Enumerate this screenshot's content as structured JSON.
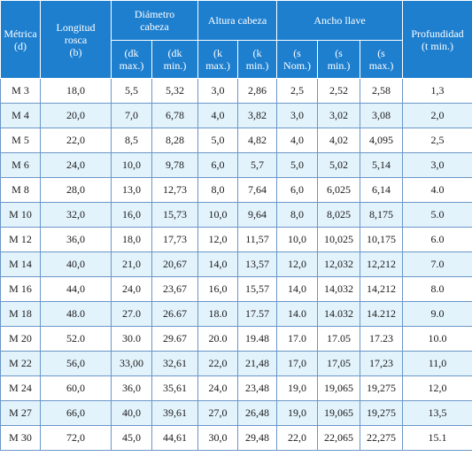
{
  "headers": {
    "metrica": [
      "Métrica",
      "(d)"
    ],
    "longitud": [
      "Longitud",
      "rosca",
      "(b)"
    ],
    "diametro": [
      "Diámetro",
      "cabeza"
    ],
    "altura": "Altura cabeza",
    "ancho": "Ancho llave",
    "profundidad": [
      "Profundidad",
      "(t min.)"
    ],
    "sub": [
      [
        "(dk",
        "max.)"
      ],
      [
        "(dk",
        "min.)"
      ],
      [
        "(k",
        "max.)"
      ],
      [
        "(k",
        "min.)"
      ],
      [
        "(s",
        "Nom.)"
      ],
      [
        "(s",
        "min.)"
      ],
      [
        "(s",
        "max.)"
      ]
    ]
  },
  "rows": [
    [
      "M 3",
      "18,0",
      "5,5",
      "5,32",
      "3,0",
      "2,86",
      "2,5",
      "2,52",
      "2,58",
      "1,3"
    ],
    [
      "M 4",
      "20,0",
      "7,0",
      "6,78",
      "4,0",
      "3,82",
      "3,0",
      "3,02",
      "3,08",
      "2,0"
    ],
    [
      "M 5",
      "22,0",
      "8,5",
      "8,28",
      "5,0",
      "4,82",
      "4,0",
      "4,02",
      "4,095",
      "2,5"
    ],
    [
      "M 6",
      "24,0",
      "10,0",
      "9,78",
      "6,0",
      "5,7",
      "5,0",
      "5,02",
      "5,14",
      "3,0"
    ],
    [
      "M 8",
      "28,0",
      "13,0",
      "12,73",
      "8,0",
      "7,64",
      "6,0",
      "6,025",
      "6,14",
      "4.0"
    ],
    [
      "M 10",
      "32,0",
      "16,0",
      "15,73",
      "10,0",
      "9,64",
      "8,0",
      "8,025",
      "8,175",
      "5.0"
    ],
    [
      "M 12",
      "36,0",
      "18,0",
      "17,73",
      "12,0",
      "11,57",
      "10,0",
      "10,025",
      "10,175",
      "6.0"
    ],
    [
      "M 14",
      "40,0",
      "21,0",
      "20,67",
      "14,0",
      "13,57",
      "12,0",
      "12,032",
      "12,212",
      "7.0"
    ],
    [
      "M 16",
      "44,0",
      "24,0",
      "23,67",
      "16,0",
      "15,57",
      "14,0",
      "14,032",
      "14,212",
      "8.0"
    ],
    [
      "M 18",
      "48.0",
      "27.0",
      "26.67",
      "18.0",
      "17.57",
      "14.0",
      "14.032",
      "14.212",
      "9.0"
    ],
    [
      "M 20",
      "52.0",
      "30.0",
      "29.67",
      "20.0",
      "19.48",
      "17.0",
      "17.05",
      "17.23",
      "10.0"
    ],
    [
      "M 22",
      "56,0",
      "33,00",
      "32,61",
      "22,0",
      "21,48",
      "17,0",
      "17,05",
      "17,23",
      "11,0"
    ],
    [
      "M 24",
      "60,0",
      "36,0",
      "35,61",
      "24,0",
      "23,48",
      "19,0",
      "19,065",
      "19,275",
      "12,0"
    ],
    [
      "M 27",
      "66,0",
      "40,0",
      "39,61",
      "27,0",
      "26,48",
      "19,0",
      "19,065",
      "19,275",
      "13,5"
    ],
    [
      "M 30",
      "72,0",
      "45,0",
      "44,61",
      "30,0",
      "29,48",
      "22,0",
      "22,065",
      "22,275",
      "15.1"
    ]
  ]
}
